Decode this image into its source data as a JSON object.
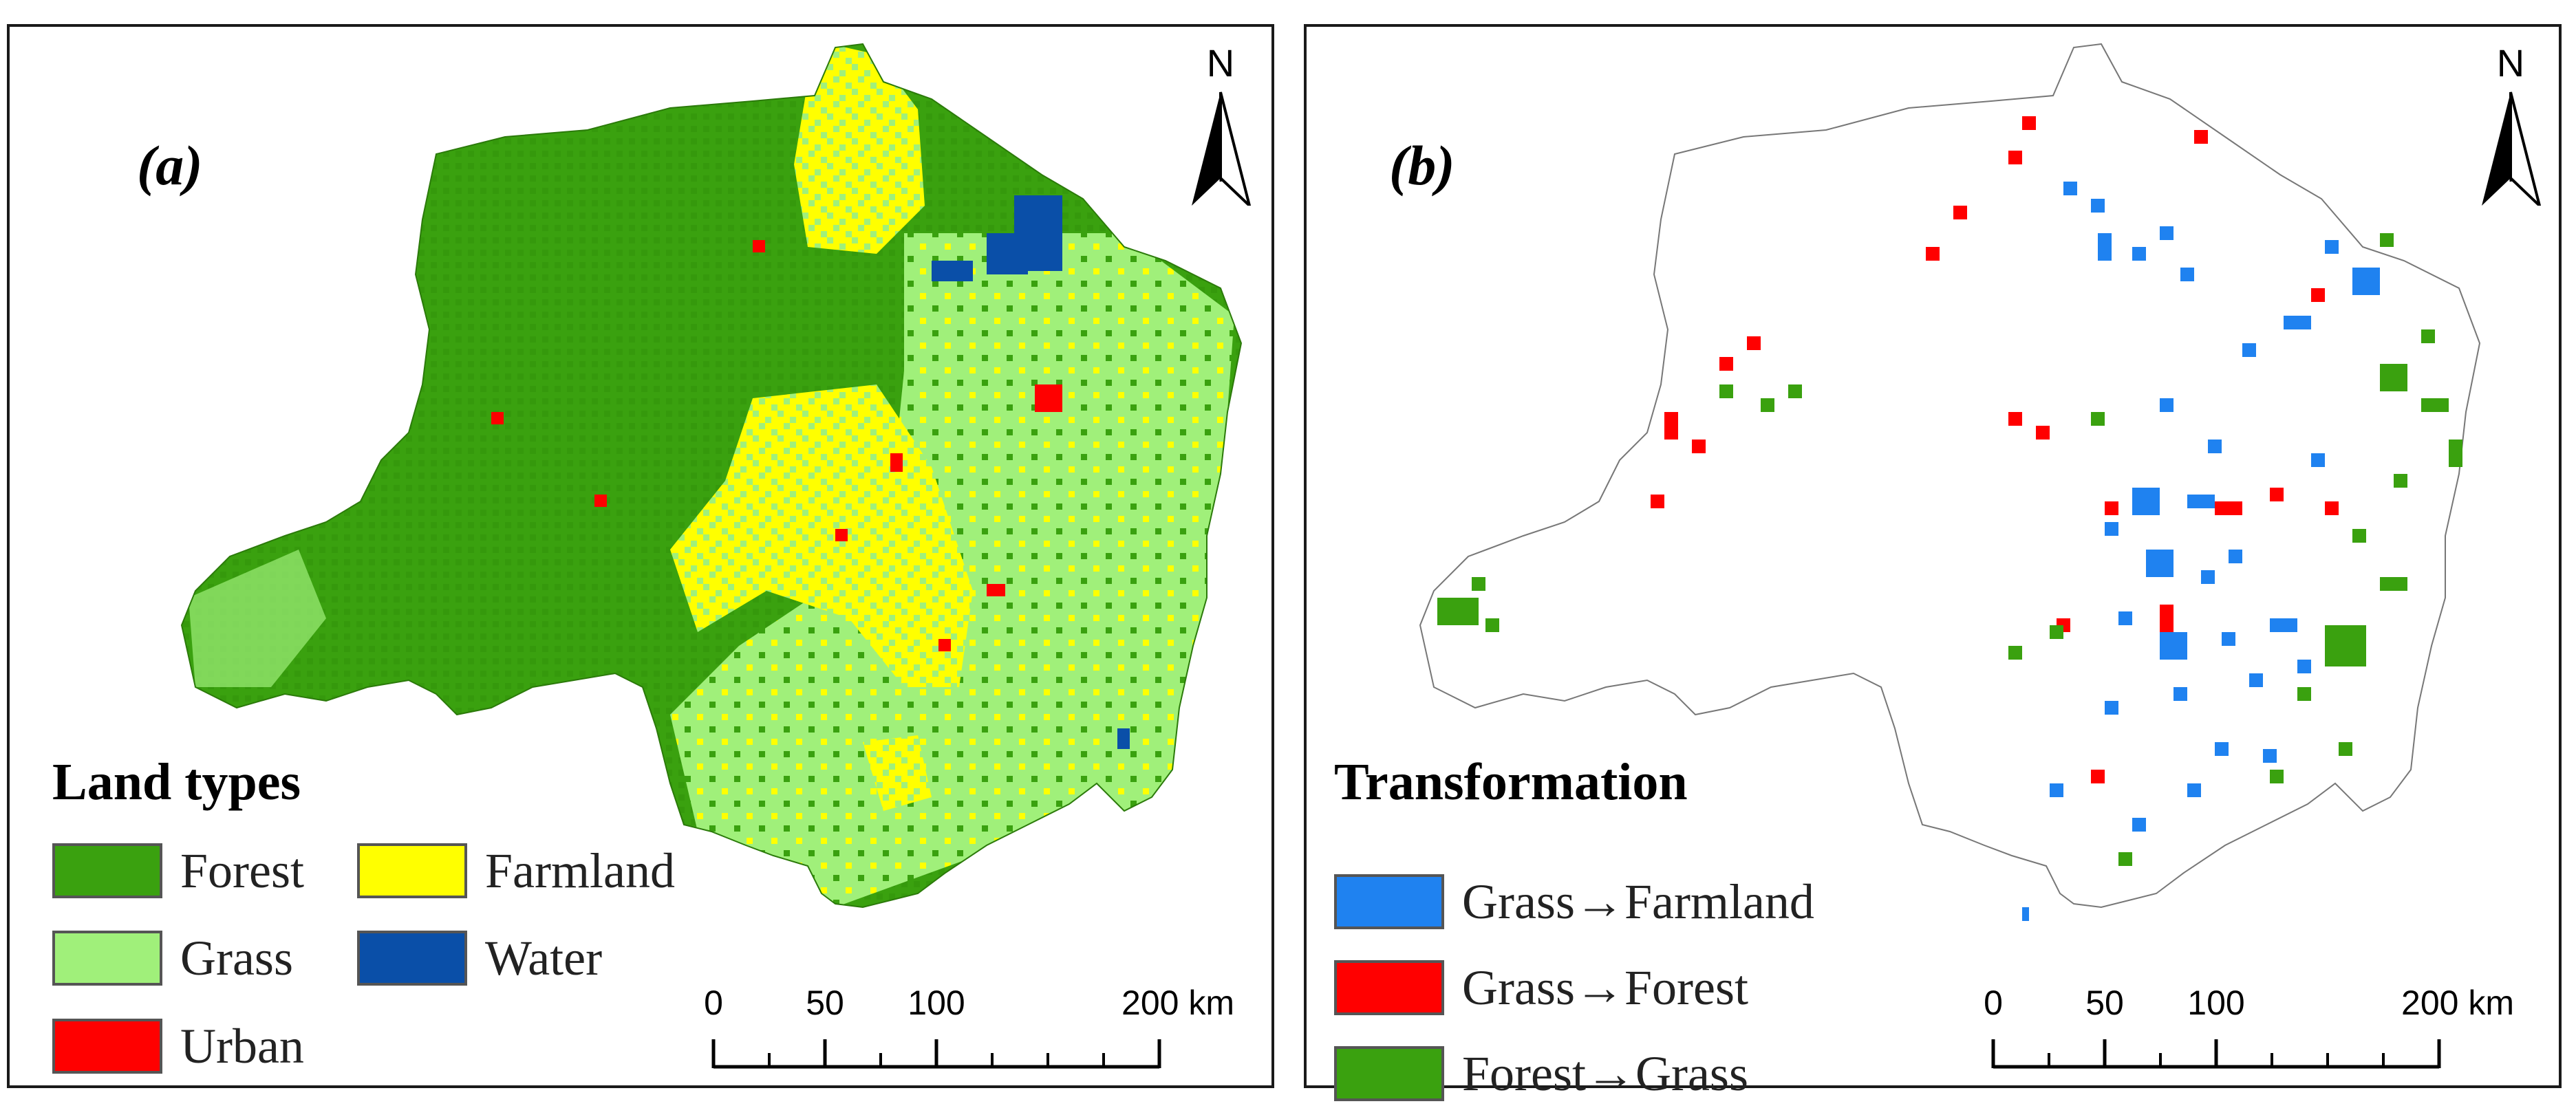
{
  "panels": [
    {
      "label": "(a)",
      "legend": {
        "title": "Land types",
        "items": [
          {
            "label": "Forest",
            "color": "#3aa10f"
          },
          {
            "label": "Farmland",
            "color": "#ffff00"
          },
          {
            "label": "Grass",
            "color": "#a0f07a"
          },
          {
            "label": "Water",
            "color": "#0a4fa8"
          },
          {
            "label": "Urban",
            "color": "#ff0000"
          }
        ]
      },
      "north_arrow": "N",
      "scale_bar": {
        "ticks": [
          "0",
          "50",
          "100",
          "200 km"
        ]
      }
    },
    {
      "label": "(b)",
      "legend": {
        "title": "Transformation",
        "items": [
          {
            "label": "Grass→Farmland",
            "color": "#1f82f0"
          },
          {
            "label": "Grass→Forest",
            "color": "#ff0000"
          },
          {
            "label": "Forest→Grass",
            "color": "#3aa10f"
          }
        ]
      },
      "north_arrow": "N",
      "scale_bar": {
        "ticks": [
          "0",
          "50",
          "100",
          "200 km"
        ]
      }
    }
  ]
}
